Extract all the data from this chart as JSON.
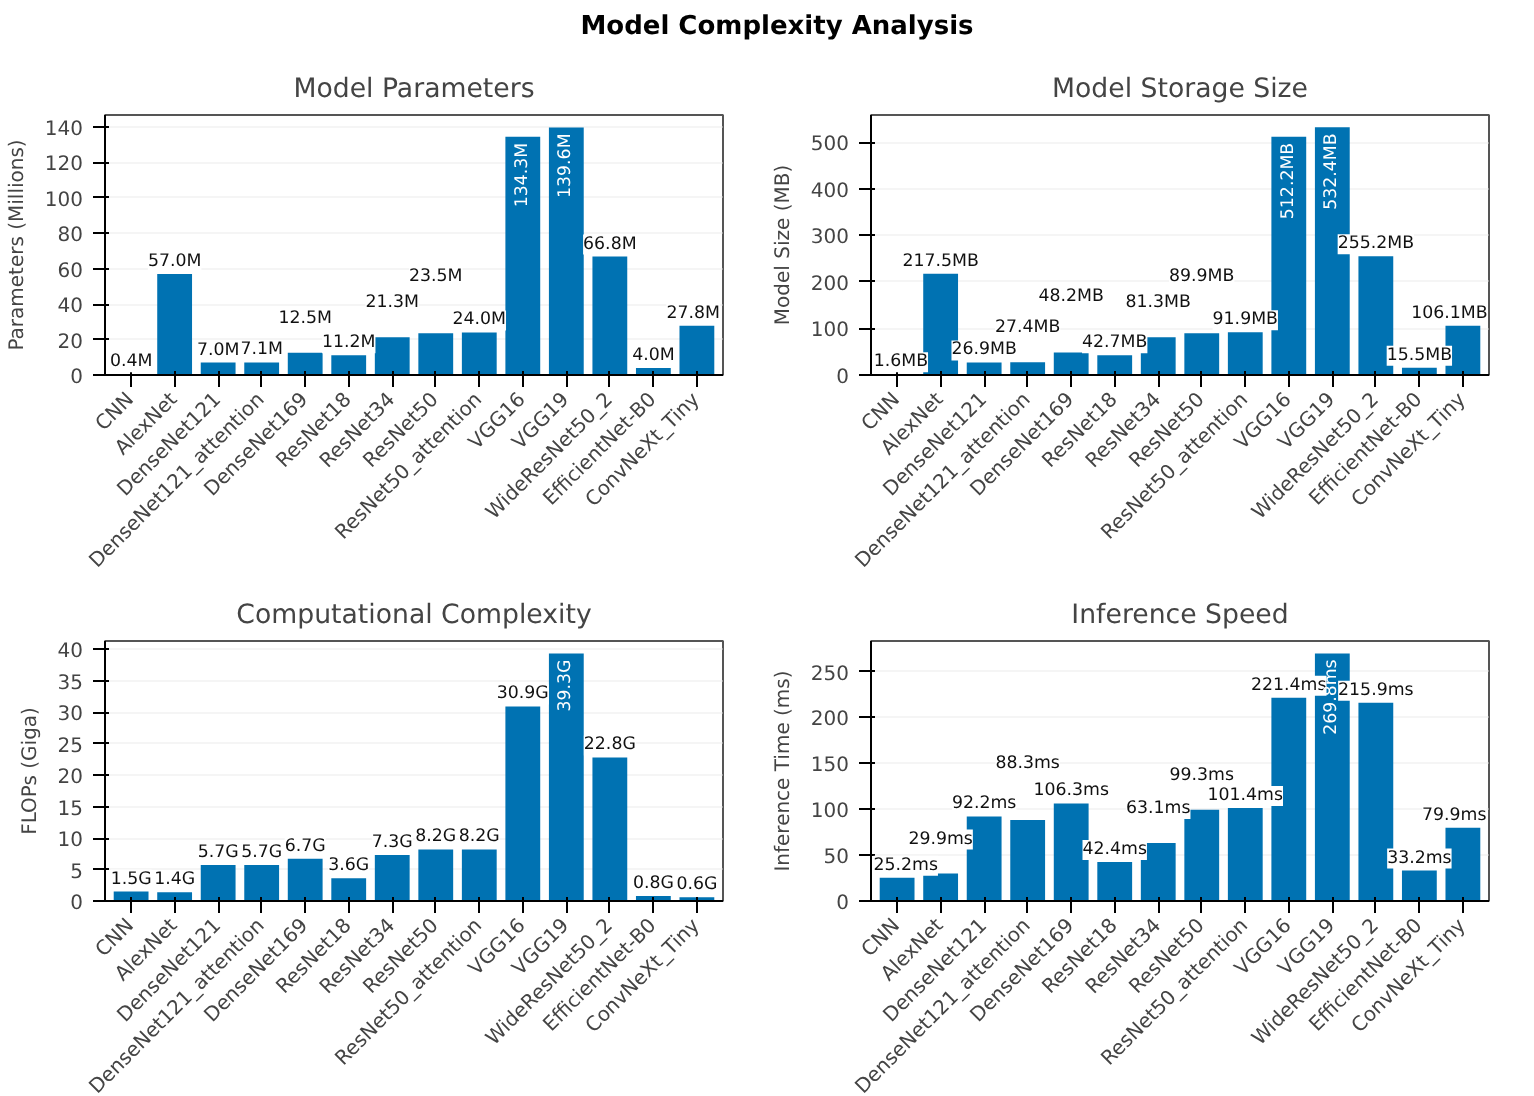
{
  "chart_data": [
    {
      "type": "bar",
      "title": "Model Parameters",
      "ylabel": "Parameters (Millions)",
      "annotations": [
        "Model Complexity Analysis"
      ],
      "categories": [
        "CNN",
        "AlexNet",
        "DenseNet121",
        "DenseNet121_attention",
        "DenseNet169",
        "ResNet18",
        "ResNet34",
        "ResNet50",
        "ResNet50_attention",
        "VGG16",
        "VGG19",
        "WideResNet50_2",
        "EfficientNet-B0",
        "ConvNeXt_Tiny"
      ],
      "series": [
        {
          "color": "#0072b2",
          "values": [
            0.4,
            57.0,
            7.0,
            7.1,
            12.5,
            11.2,
            21.3,
            23.5,
            24.0,
            134.3,
            139.6,
            66.8,
            4.0,
            27.8
          ],
          "value_labels": [
            "0.4M",
            "57.0M",
            "7.0M",
            "7.1M",
            "12.5M",
            "11.2M",
            "21.3M",
            "23.5M",
            "24.0M",
            "134.3M",
            "139.6M",
            "66.8M",
            "4.0M",
            "27.8M"
          ]
        }
      ],
      "ylim": [
        0,
        146.6
      ],
      "yticks": [
        0,
        20,
        40,
        60,
        80,
        100,
        120,
        140
      ],
      "grid": "y"
    },
    {
      "type": "bar",
      "title": "Model Storage Size",
      "ylabel": "Model Size (MB)",
      "categories": [
        "CNN",
        "AlexNet",
        "DenseNet121",
        "DenseNet121_attention",
        "DenseNet169",
        "ResNet18",
        "ResNet34",
        "ResNet50",
        "ResNet50_attention",
        "VGG16",
        "VGG19",
        "WideResNet50_2",
        "EfficientNet-B0",
        "ConvNeXt_Tiny"
      ],
      "series": [
        {
          "color": "#0072b2",
          "values": [
            1.6,
            217.5,
            26.9,
            27.4,
            48.2,
            42.7,
            81.3,
            89.9,
            91.9,
            512.2,
            532.4,
            255.2,
            15.5,
            106.1
          ],
          "value_labels": [
            "1.6MB",
            "217.5MB",
            "26.9MB",
            "27.4MB",
            "48.2MB",
            "42.7MB",
            "81.3MB",
            "89.9MB",
            "91.9MB",
            "512.2MB",
            "532.4MB",
            "255.2MB",
            "15.5MB",
            "106.1MB"
          ]
        }
      ],
      "ylim": [
        0,
        559
      ],
      "yticks": [
        0,
        100,
        200,
        300,
        400,
        500
      ],
      "grid": "y"
    },
    {
      "type": "bar",
      "title": "Computational Complexity",
      "ylabel": "FLOPs (Giga)",
      "categories": [
        "CNN",
        "AlexNet",
        "DenseNet121",
        "DenseNet121_attention",
        "DenseNet169",
        "ResNet18",
        "ResNet34",
        "ResNet50",
        "ResNet50_attention",
        "VGG16",
        "VGG19",
        "WideResNet50_2",
        "EfficientNet-B0",
        "ConvNeXt_Tiny"
      ],
      "series": [
        {
          "color": "#0072b2",
          "values": [
            1.5,
            1.4,
            5.7,
            5.7,
            6.7,
            3.6,
            7.3,
            8.2,
            8.2,
            30.9,
            39.3,
            22.8,
            0.8,
            0.6
          ],
          "value_labels": [
            "1.5G",
            "1.4G",
            "5.7G",
            "5.7G",
            "6.7G",
            "3.6G",
            "7.3G",
            "8.2G",
            "8.2G",
            "30.9G",
            "39.3G",
            "22.8G",
            "0.8G",
            "0.6G"
          ]
        }
      ],
      "ylim": [
        0,
        41.3
      ],
      "yticks": [
        0,
        5,
        10,
        15,
        20,
        25,
        30,
        35,
        40
      ],
      "grid": "y"
    },
    {
      "type": "bar",
      "title": "Inference Speed",
      "ylabel": "Inference Time (ms)",
      "categories": [
        "CNN",
        "AlexNet",
        "DenseNet121",
        "DenseNet121_attention",
        "DenseNet169",
        "ResNet18",
        "ResNet34",
        "ResNet50",
        "ResNet50_attention",
        "VGG16",
        "VGG19",
        "WideResNet50_2",
        "EfficientNet-B0",
        "ConvNeXt_Tiny"
      ],
      "series": [
        {
          "color": "#0072b2",
          "values": [
            25.2,
            29.9,
            92.2,
            88.3,
            106.3,
            42.4,
            63.1,
            99.3,
            101.4,
            221.4,
            269.8,
            215.9,
            33.2,
            79.9
          ],
          "value_labels": [
            "25.2ms",
            "29.9ms",
            "92.2ms",
            "88.3ms",
            "106.3ms",
            "42.4ms",
            "63.1ms",
            "99.3ms",
            "101.4ms",
            "221.4ms",
            "269.8ms",
            "215.9ms",
            "33.2ms",
            "79.9ms"
          ]
        }
      ],
      "ylim": [
        0,
        283.3
      ],
      "yticks": [
        0,
        50,
        100,
        150,
        200,
        250
      ],
      "grid": "y"
    }
  ]
}
